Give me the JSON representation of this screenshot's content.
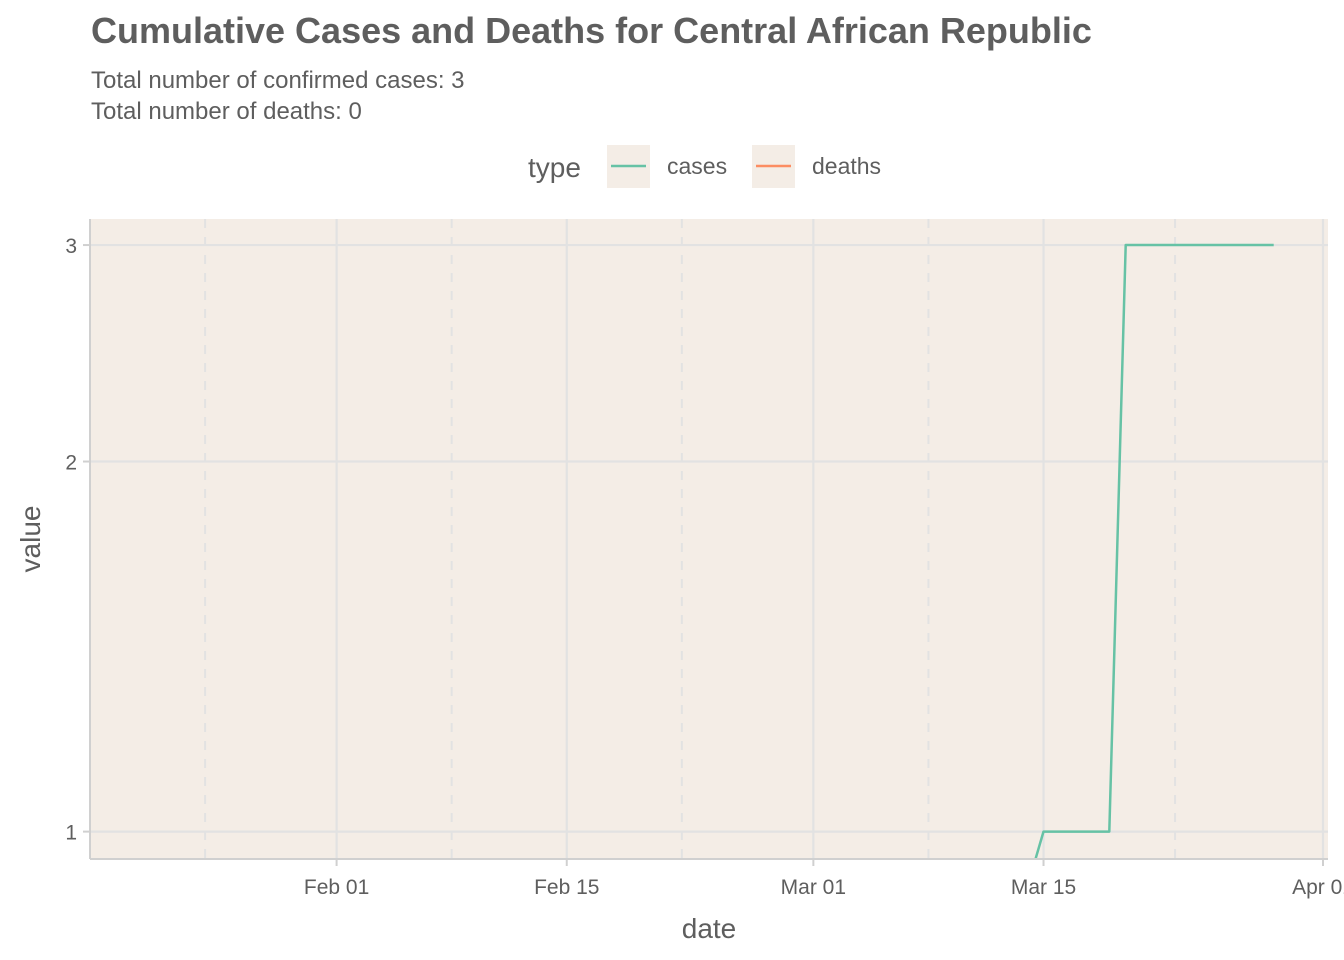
{
  "chart_data": {
    "type": "line",
    "title": "Cumulative Cases and Deaths for Central African Republic",
    "subtitle_lines": [
      "Total number of confirmed cases: 3",
      "Total number of deaths: 0"
    ],
    "xlabel": "date",
    "ylabel": "value",
    "y_scale": "log",
    "ylim": [
      0.95,
      3.15
    ],
    "y_ticks": [
      1,
      2,
      3
    ],
    "x_range": [
      "2020-01-17",
      "2020-04-01"
    ],
    "x_ticks": [
      {
        "date": "2020-02-01",
        "label": "Feb 01"
      },
      {
        "date": "2020-02-15",
        "label": "Feb 15"
      },
      {
        "date": "2020-03-01",
        "label": "Mar 01"
      },
      {
        "date": "2020-03-15",
        "label": "Mar 15"
      },
      {
        "date": "2020-04-01",
        "label": "Apr 01"
      }
    ],
    "x_minor_ticks": [
      "2020-01-24",
      "2020-02-08",
      "2020-02-22",
      "2020-03-08",
      "2020-03-23"
    ],
    "legend": {
      "title": "type",
      "position": "top",
      "entries": [
        "cases",
        "deaths"
      ]
    },
    "colors": {
      "cases": "#66c2a5",
      "deaths": "#fc8d62",
      "panel": "#f4ede6",
      "grid": "#e2e2e2"
    },
    "series": [
      {
        "name": "cases",
        "points": [
          {
            "x": "2020-03-14",
            "y": 0.9
          },
          {
            "x": "2020-03-15",
            "y": 1
          },
          {
            "x": "2020-03-19",
            "y": 1
          },
          {
            "x": "2020-03-20",
            "y": 3
          },
          {
            "x": "2020-03-29",
            "y": 3
          }
        ]
      },
      {
        "name": "deaths",
        "points": []
      }
    ]
  }
}
